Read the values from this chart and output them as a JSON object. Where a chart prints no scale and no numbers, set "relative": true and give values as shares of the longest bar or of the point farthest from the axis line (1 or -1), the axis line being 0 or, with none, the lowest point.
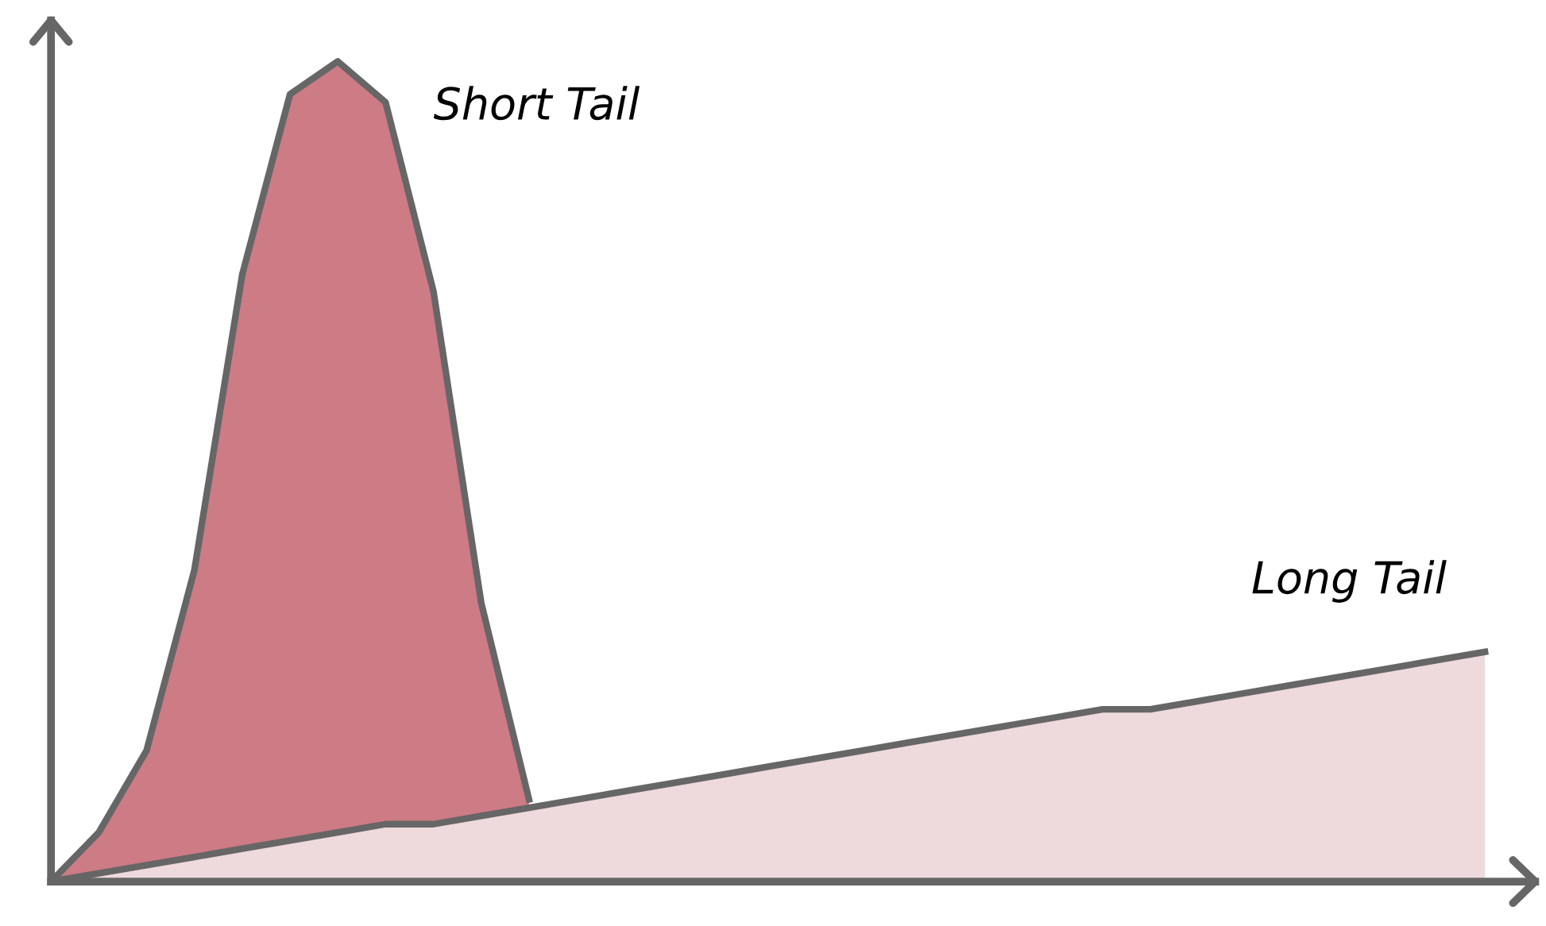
{
  "chart_data": {
    "type": "area",
    "relative": true,
    "legend": false,
    "categories": [
      null,
      null,
      null,
      null,
      null,
      null,
      null,
      null,
      null,
      null,
      null,
      null,
      null,
      null,
      null,
      null,
      null,
      null,
      null,
      null,
      null,
      null,
      null,
      null,
      null,
      null,
      null,
      null,
      null,
      null,
      null
    ],
    "series": [
      {
        "name": "Short Tail",
        "color": "#cd7b85",
        "values": [
          0,
          0.06,
          0.16,
          0.38,
          0.74,
          0.96,
          1.0,
          0.95,
          0.72,
          0.34,
          0.1,
          null,
          null,
          null,
          null,
          null,
          null,
          null,
          null,
          null,
          null,
          null,
          null,
          null,
          null,
          null,
          null,
          null,
          null,
          null,
          null
        ]
      },
      {
        "name": "Long Tail",
        "color": "#eed9dc",
        "values": [
          0,
          0.01,
          0.02,
          0.03,
          0.04,
          0.05,
          0.06,
          0.07,
          0.07,
          0.08,
          0.09,
          0.1,
          0.11,
          0.12,
          0.13,
          0.14,
          0.15,
          0.16,
          0.17,
          0.18,
          0.19,
          0.2,
          0.21,
          0.21,
          0.22,
          0.23,
          0.24,
          0.25,
          0.26,
          0.27,
          0.28
        ]
      }
    ]
  }
}
